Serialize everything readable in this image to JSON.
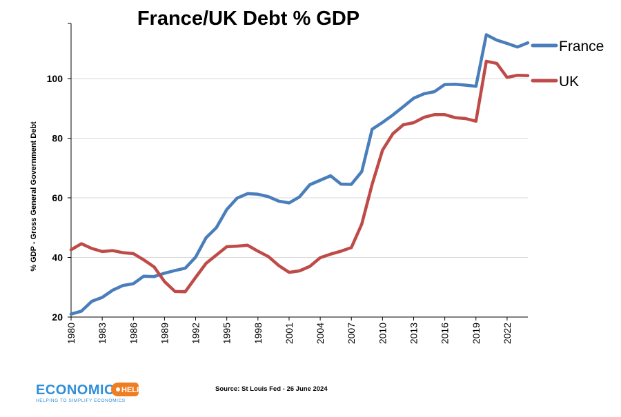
{
  "chart_data": {
    "type": "line",
    "title": "France/UK Debt % GDP",
    "xlabel": "",
    "ylabel": "% GDP - Gross General Government Debt",
    "x": [
      1980,
      1981,
      1982,
      1983,
      1984,
      1985,
      1986,
      1987,
      1988,
      1989,
      1990,
      1991,
      1992,
      1993,
      1994,
      1995,
      1996,
      1997,
      1998,
      1999,
      2000,
      2001,
      2002,
      2003,
      2004,
      2005,
      2006,
      2007,
      2008,
      2009,
      2010,
      2011,
      2012,
      2013,
      2014,
      2015,
      2016,
      2017,
      2018,
      2019,
      2020,
      2021,
      2022,
      2023,
      2024
    ],
    "x_tick_labels": [
      "1980",
      "1983",
      "1986",
      "1989",
      "1992",
      "1995",
      "1998",
      "2001",
      "2004",
      "2007",
      "2010",
      "2013",
      "2016",
      "2019",
      "2022"
    ],
    "y_tick_labels": [
      "20",
      "40",
      "60",
      "80",
      "100"
    ],
    "ylim": [
      20,
      118
    ],
    "xlim": [
      1980,
      2024
    ],
    "grid": true,
    "legend": "right",
    "series": [
      {
        "name": "France",
        "color": "#4a7ebb",
        "values": [
          21.0,
          22.0,
          25.3,
          26.6,
          29.0,
          30.6,
          31.2,
          33.7,
          33.6,
          34.7,
          35.6,
          36.4,
          40.1,
          46.6,
          50.0,
          56.1,
          59.9,
          61.4,
          61.2,
          60.4,
          58.9,
          58.3,
          60.3,
          64.4,
          65.9,
          67.4,
          64.6,
          64.5,
          68.8,
          83.0,
          85.3,
          87.8,
          90.6,
          93.4,
          94.9,
          95.6,
          98.0,
          98.1,
          97.8,
          97.4,
          114.7,
          112.9,
          111.8,
          110.6,
          112.0
        ]
      },
      {
        "name": "UK",
        "color": "#be4b48",
        "values": [
          42.6,
          44.6,
          43.0,
          42.0,
          42.3,
          41.6,
          41.3,
          39.2,
          36.8,
          31.9,
          28.6,
          28.5,
          33.3,
          38.0,
          40.8,
          43.6,
          43.8,
          44.1,
          42.1,
          40.3,
          37.3,
          35.0,
          35.5,
          37.0,
          39.9,
          41.1,
          42.1,
          43.3,
          51.2,
          64.5,
          76.0,
          81.5,
          84.5,
          85.2,
          87.0,
          87.9,
          87.9,
          86.9,
          86.6,
          85.7,
          105.8,
          105.1,
          100.4,
          101.1,
          101.0
        ]
      }
    ],
    "annotations": [
      "Source: St Louis Fed - 26 June 2024"
    ]
  },
  "logo": {
    "wordmark": "ECONOMICS",
    "badge": "HELP",
    "tagline": "HELPING TO SIMPLIFY ECONOMICS",
    "colors": {
      "wordmark": "#2f8ed8",
      "badge": "#1c4f8a",
      "badge_bg": "#ef7d22"
    }
  }
}
